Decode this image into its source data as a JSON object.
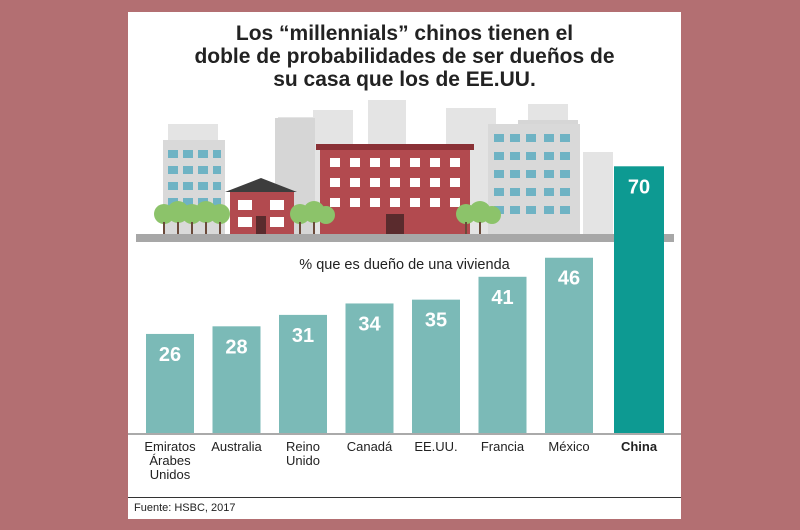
{
  "title_lines": [
    "Los “millennials” chinos tienen el",
    "doble de probabilidades de ser dueños de",
    "su casa que los de EE.UU."
  ],
  "colors": {
    "background": "#b36f72",
    "bar": "#7bbab7",
    "highlight_bar": "#0d9a92",
    "bar_label": "#ffffff"
  },
  "chart_data": {
    "type": "bar",
    "title": "Los “millennials” chinos tienen el doble de probabilidades de ser dueños de su casa que los de EE.UU.",
    "subtitle": "% que es dueño de una vivienda",
    "categories": [
      [
        "Emiratos",
        "Árabes",
        "Unidos"
      ],
      [
        "Australia"
      ],
      [
        "Reino",
        "Unido"
      ],
      [
        "Canadá"
      ],
      [
        "EE.UU."
      ],
      [
        "Francia"
      ],
      [
        "México"
      ],
      [
        "China"
      ]
    ],
    "values": [
      26,
      28,
      31,
      34,
      35,
      41,
      46,
      70
    ],
    "highlight": "China",
    "ylim": [
      0,
      70
    ]
  },
  "source": "Fuente: HSBC, 2017"
}
